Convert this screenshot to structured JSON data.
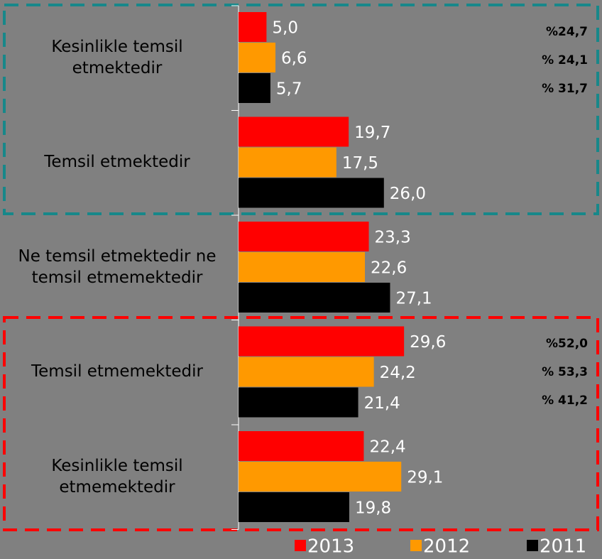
{
  "chart_data": {
    "type": "barh",
    "categories": [
      "Kesinlikle temsil etmektedir",
      "Temsil etmektedir",
      "Ne temsil etmektedir ne temsil etmemektedir",
      "Temsil etmemektedir",
      "Kesinlikle temsil etmemektedir"
    ],
    "series": [
      {
        "name": "2013",
        "color": "#ff0000",
        "values": [
          5.0,
          19.7,
          23.3,
          29.6,
          22.4
        ],
        "value_labels": [
          "5,0",
          "19,7",
          "23,3",
          "29,6",
          "22,4"
        ]
      },
      {
        "name": "2012",
        "color": "#ff9900",
        "values": [
          6.6,
          17.5,
          22.6,
          24.2,
          29.1
        ],
        "value_labels": [
          "6,6",
          "17,5",
          "22,6",
          "24,2",
          "29,1"
        ]
      },
      {
        "name": "2011",
        "color": "#000000",
        "values": [
          5.7,
          26.0,
          27.1,
          21.4,
          19.8
        ],
        "value_labels": [
          "5,7",
          "26,0",
          "27,1",
          "21,4",
          "19,8"
        ]
      }
    ],
    "xlim": [
      0,
      65
    ],
    "annotations": [
      "%24,7",
      "% 24,1",
      "% 31,7",
      "%52,0",
      "% 53,3",
      "% 41,2"
    ]
  }
}
